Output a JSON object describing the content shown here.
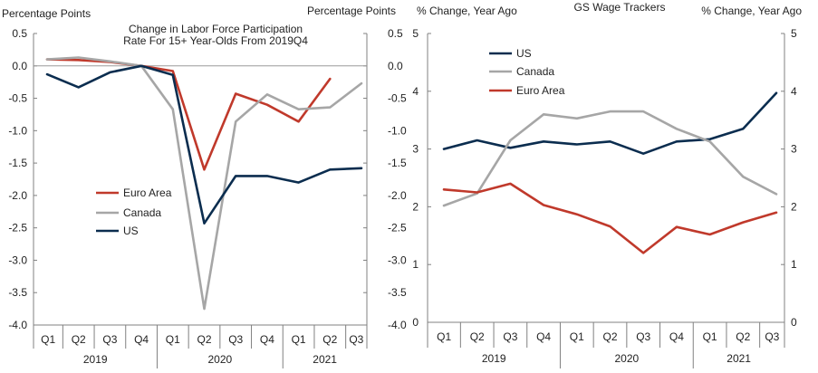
{
  "chart_data": [
    {
      "type": "line",
      "title_lines": [
        "Change in Labor Force Participation",
        "Rate For 15+ Year-Olds From 2019Q4"
      ],
      "ylabel_left": "Percentage Points",
      "ylabel_right": "Percentage Points",
      "ylim": [
        -4.0,
        0.5
      ],
      "yticks": [
        "0.5",
        "0.0",
        "-0.5",
        "-1.0",
        "-1.5",
        "-2.0",
        "-2.5",
        "-3.0",
        "-3.5",
        "-4.0"
      ],
      "yticks_right": [
        "0.5",
        "0.0",
        "-0.5",
        "-1.0",
        "-1.5",
        "-2.0",
        "-2.5",
        "-3.0",
        "-3.5",
        "-4.0"
      ],
      "quarters": [
        "Q1",
        "Q2",
        "Q3",
        "Q4",
        "Q1",
        "Q2",
        "Q3",
        "Q4",
        "Q1",
        "Q2",
        "Q3"
      ],
      "years": [
        {
          "label": "2019",
          "count": 4
        },
        {
          "label": "2020",
          "count": 4
        },
        {
          "label": "2021",
          "count": 3
        }
      ],
      "legend_position": "lower-left",
      "series": [
        {
          "name": "Euro Area",
          "color": "#c0392b",
          "values": [
            0.1,
            0.09,
            0.06,
            0.0,
            -0.08,
            -1.6,
            -0.43,
            -0.6,
            -0.86,
            -0.2,
            null
          ]
        },
        {
          "name": "Canada",
          "color": "#a6a6a6",
          "values": [
            0.1,
            0.13,
            0.07,
            0.0,
            -0.67,
            -3.75,
            -0.86,
            -0.44,
            -0.67,
            -0.64,
            -0.27
          ]
        },
        {
          "name": "US",
          "color": "#0b2d4f",
          "values": [
            -0.13,
            -0.33,
            -0.1,
            0.0,
            -0.14,
            -2.43,
            -1.7,
            -1.7,
            -1.8,
            -1.6,
            -1.58
          ]
        }
      ]
    },
    {
      "type": "line",
      "title": "GS Wage Trackers",
      "ylabel_left": "% Change, Year Ago",
      "ylabel_right": "% Change, Year Ago",
      "ylim": [
        0,
        5
      ],
      "yticks": [
        "5",
        "4",
        "3",
        "2",
        "1",
        "0"
      ],
      "yticks_right": [
        "5",
        "4",
        "3",
        "2",
        "1",
        "0"
      ],
      "quarters": [
        "Q1",
        "Q2",
        "Q3",
        "Q4",
        "Q1",
        "Q2",
        "Q3",
        "Q4",
        "Q1",
        "Q2",
        "Q3"
      ],
      "years": [
        {
          "label": "2019",
          "count": 4
        },
        {
          "label": "2020",
          "count": 4
        },
        {
          "label": "2021",
          "count": 3
        }
      ],
      "legend_position": "top-left",
      "series": [
        {
          "name": "US",
          "color": "#0b2d4f",
          "values": [
            3.0,
            3.15,
            3.02,
            3.13,
            3.08,
            3.13,
            2.92,
            3.13,
            3.17,
            3.35,
            3.97
          ]
        },
        {
          "name": "Canada",
          "color": "#a6a6a6",
          "values": [
            2.02,
            2.23,
            3.15,
            3.6,
            3.53,
            3.65,
            3.65,
            3.35,
            3.13,
            2.52,
            2.22
          ]
        },
        {
          "name": "Euro Area",
          "color": "#c0392b",
          "values": [
            2.3,
            2.25,
            2.4,
            2.03,
            1.87,
            1.66,
            1.2,
            1.65,
            1.52,
            1.73,
            1.9
          ]
        }
      ]
    }
  ]
}
